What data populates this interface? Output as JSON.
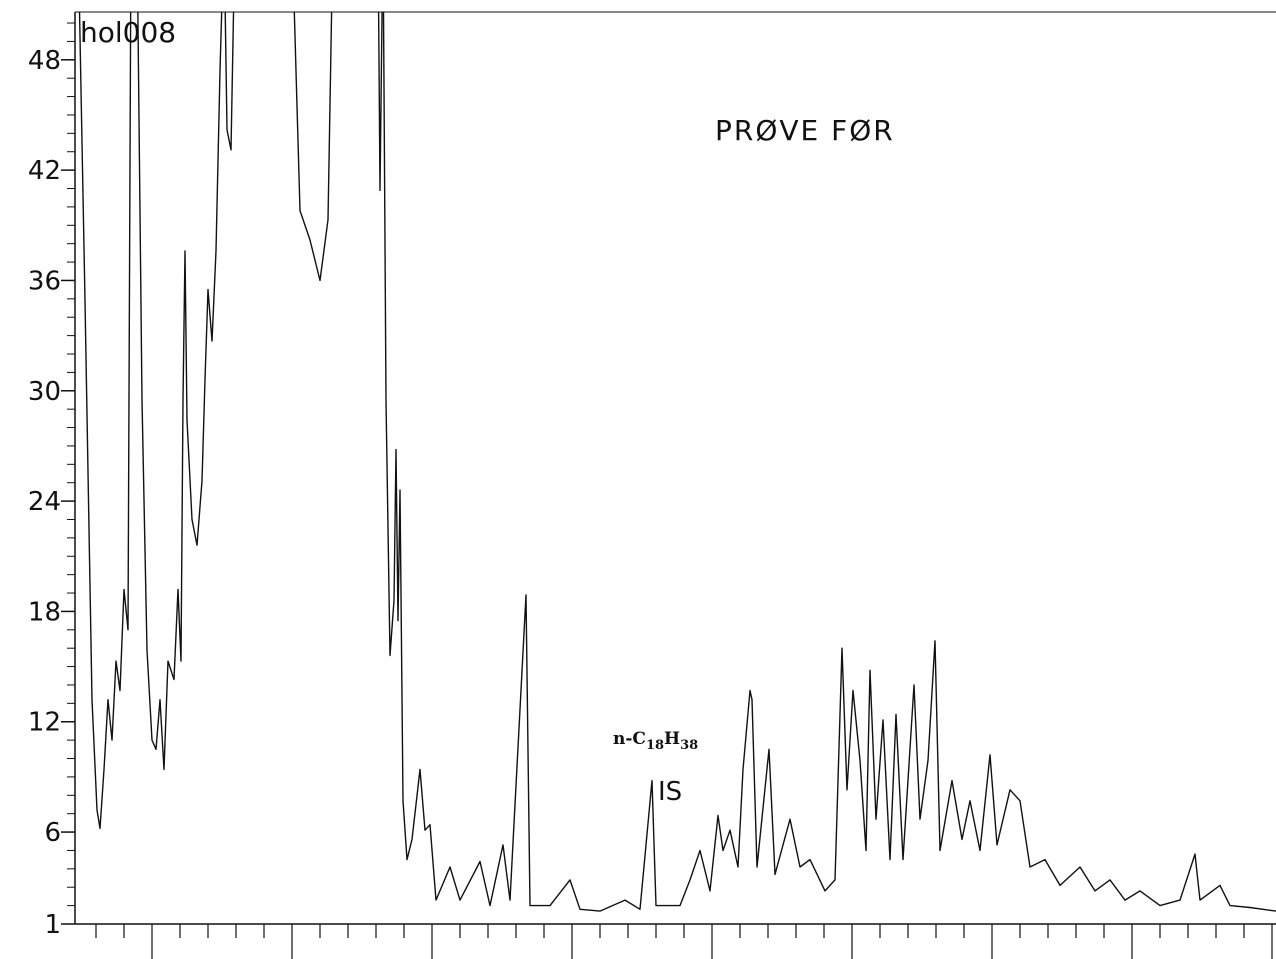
{
  "chart_data": {
    "type": "line",
    "title": "hol008",
    "annotations": {
      "sample": "PRØVE FØR",
      "standard": "IS",
      "formula": [
        "n-C",
        "18",
        "H",
        "38"
      ]
    },
    "color": "#111111",
    "xlim": [
      -21,
      1180
    ],
    "ylim": [
      1,
      50.6
    ],
    "yticks": [
      1,
      6,
      12,
      18,
      24,
      30,
      36,
      42,
      48
    ],
    "yminor_step": 1,
    "xticks_major": [
      56,
      196,
      336,
      476,
      616,
      756,
      896,
      1036,
      1176
    ],
    "xticks_minor": [
      0,
      28,
      84,
      112,
      140,
      168,
      224,
      252,
      280,
      308,
      364,
      392,
      420,
      448,
      504,
      532,
      560,
      588,
      644,
      672,
      700,
      728,
      784,
      812,
      840,
      868,
      924,
      952,
      980,
      1008,
      1064,
      1092,
      1120,
      1148
    ],
    "x": [
      -18,
      -11,
      -4,
      1,
      4,
      8,
      12,
      16,
      20,
      24,
      28,
      32,
      35,
      41,
      46,
      51,
      56,
      60,
      64,
      68,
      72,
      78,
      82,
      85,
      87,
      89,
      91,
      96,
      101,
      106,
      109,
      112,
      116,
      120,
      124,
      128,
      131,
      135,
      139,
      196,
      204,
      214,
      224,
      232,
      237,
      282,
      284,
      287,
      290,
      294,
      298,
      300,
      302,
      304,
      307,
      311,
      316,
      324,
      329,
      334,
      340,
      354,
      364,
      384,
      394,
      407,
      414,
      430,
      434,
      454,
      474,
      484,
      504,
      529,
      544,
      556,
      560,
      584,
      594,
      604,
      614,
      622,
      627,
      634,
      642,
      647,
      654,
      656,
      661,
      673,
      679,
      694,
      704,
      714,
      729,
      739,
      746,
      751,
      757,
      764,
      770,
      774,
      780,
      787,
      794,
      800,
      807,
      818,
      824,
      832,
      839,
      844,
      856,
      866,
      874,
      884,
      894,
      901,
      914,
      924,
      934,
      949,
      964,
      984,
      999,
      1014,
      1029,
      1044,
      1064,
      1084,
      1099,
      1104,
      1124,
      1134,
      1154,
      1180
    ],
    "y": [
      55,
      34.9,
      13.2,
      7.2,
      6.2,
      9.4,
      13.2,
      11,
      15.3,
      13.7,
      19.2,
      17,
      55,
      55,
      29.5,
      15.9,
      11,
      10.5,
      13.2,
      9.4,
      15.3,
      14.3,
      19.2,
      15.3,
      29.5,
      37.6,
      28.4,
      23,
      21.6,
      25.1,
      30.6,
      35.5,
      32.7,
      37.6,
      47.4,
      55,
      44.2,
      43.1,
      55,
      55,
      39.8,
      38.2,
      36,
      39.3,
      55,
      55,
      40.9,
      55,
      29.5,
      15.6,
      18.6,
      26.8,
      17.5,
      24.6,
      7.7,
      4.5,
      5.6,
      9.4,
      6.1,
      6.4,
      2.3,
      4.1,
      2.3,
      4.4,
      2.0,
      5.3,
      2.3,
      18.9,
      2.0,
      2.0,
      3.4,
      1.8,
      1.7,
      2.3,
      1.8,
      8.8,
      2.0,
      2.0,
      3.4,
      5.0,
      2.8,
      6.9,
      5.0,
      6.1,
      4.1,
      9.4,
      13.7,
      13.2,
      4.1,
      10.5,
      3.7,
      6.7,
      4.1,
      4.5,
      2.8,
      3.4,
      16,
      8.3,
      13.7,
      9.9,
      5.0,
      14.8,
      6.7,
      12.1,
      4.5,
      12.4,
      4.5,
      14,
      6.7,
      9.9,
      16.4,
      5.0,
      8.8,
      5.6,
      7.7,
      5.0,
      10.2,
      5.3,
      8.3,
      7.7,
      4.1,
      4.5,
      3.1,
      4.1,
      2.8,
      3.4,
      2.3,
      2.8,
      2.0,
      2.3,
      4.8,
      2.3,
      3.1,
      2.0,
      1.9,
      1.7
    ]
  }
}
